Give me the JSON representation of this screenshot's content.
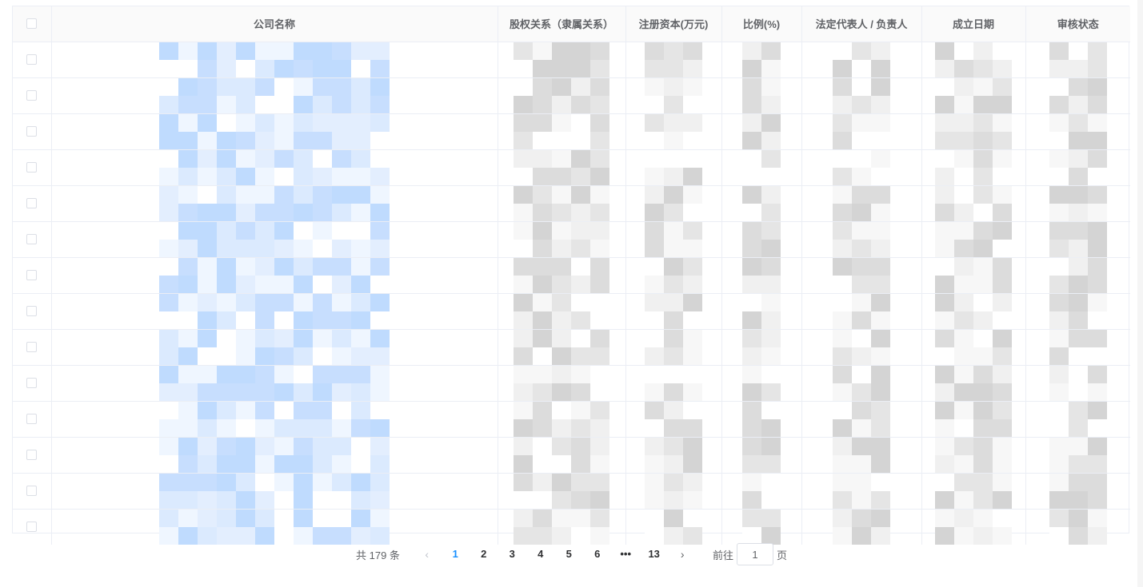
{
  "table": {
    "headers": {
      "select_all": "",
      "company": "公司名称",
      "equity": "股权关系（隶属关系）",
      "capital": "注册资本(万元)",
      "ratio": "比例(%)",
      "legal_rep": "法定代表人 / 负责人",
      "founded": "成立日期",
      "status": "审核状态"
    },
    "row_count": 14,
    "cells_note": "Cell contents are pixelated/redacted in the screenshot",
    "colors": {
      "company_blur": "#bfdbfe",
      "other_blur": "#d4d4d4",
      "border": "#ebeef5",
      "header_bg": "#fafafa"
    }
  },
  "pagination": {
    "total_label": "共 179 条",
    "prev_icon": "chevron-left-icon",
    "pages": [
      "1",
      "2",
      "3",
      "4",
      "5",
      "6",
      "•••",
      "13"
    ],
    "active_page": "1",
    "next_icon": "chevron-right-icon",
    "goto_prefix": "前往",
    "goto_value": "1",
    "goto_suffix": "页",
    "accent_color": "#1890ff"
  }
}
